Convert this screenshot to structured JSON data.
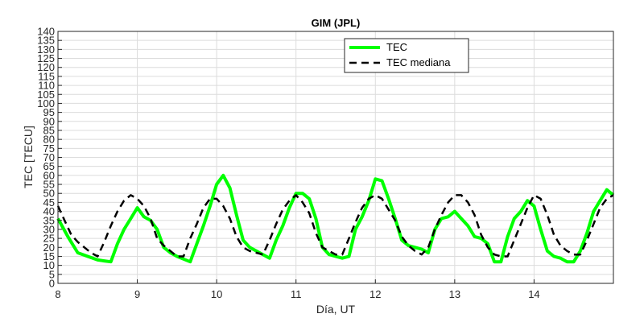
{
  "chart_data": {
    "type": "line",
    "title": "GIM (JPL)",
    "xlabel": "Día, UT",
    "ylabel": "TEC [TECU]",
    "xlim": [
      8,
      15
    ],
    "ylim": [
      0,
      140
    ],
    "xticks": [
      8,
      9,
      10,
      11,
      12,
      13,
      14
    ],
    "yticks": [
      0,
      5,
      10,
      15,
      20,
      25,
      30,
      35,
      40,
      45,
      50,
      55,
      60,
      65,
      70,
      75,
      80,
      85,
      90,
      95,
      100,
      105,
      110,
      115,
      120,
      125,
      130,
      135,
      140
    ],
    "grid": true,
    "legend": "top-center",
    "series": [
      {
        "name": "TEC",
        "color": "#00ff00",
        "style": "solid",
        "x": [
          8.0,
          8.125,
          8.25,
          8.375,
          8.5,
          8.583,
          8.667,
          8.75,
          8.833,
          8.917,
          9.0,
          9.083,
          9.167,
          9.25,
          9.333,
          9.417,
          9.5,
          9.583,
          9.667,
          9.75,
          9.833,
          9.917,
          10.0,
          10.083,
          10.167,
          10.25,
          10.333,
          10.417,
          10.5,
          10.583,
          10.667,
          10.75,
          10.833,
          10.917,
          11.0,
          11.083,
          11.167,
          11.25,
          11.333,
          11.417,
          11.5,
          11.583,
          11.667,
          11.75,
          11.833,
          11.917,
          12.0,
          12.083,
          12.167,
          12.25,
          12.333,
          12.417,
          12.5,
          12.583,
          12.667,
          12.75,
          12.833,
          12.917,
          13.0,
          13.083,
          13.167,
          13.25,
          13.333,
          13.417,
          13.5,
          13.583,
          13.667,
          13.75,
          13.833,
          13.917,
          14.0,
          14.083,
          14.167,
          14.25,
          14.333,
          14.417,
          14.5,
          14.583,
          14.667,
          14.75,
          14.833,
          14.917,
          15.0
        ],
        "y": [
          36,
          26,
          17,
          15,
          13,
          12.5,
          12,
          22,
          30,
          36,
          42,
          37,
          35,
          30,
          20,
          17,
          15,
          13.5,
          12,
          22,
          32,
          43,
          55,
          60,
          53,
          38,
          24,
          20,
          18,
          16,
          14,
          24,
          32,
          42,
          50,
          50,
          47,
          36,
          20,
          16,
          15,
          14,
          15,
          30,
          37,
          46,
          58,
          57,
          47,
          36,
          24,
          21,
          20,
          19,
          17,
          30,
          36,
          37,
          40,
          36,
          32,
          26,
          25,
          22,
          12,
          12,
          26,
          36,
          40,
          46,
          43,
          30,
          18,
          15,
          14,
          12,
          12,
          18,
          28,
          40,
          46,
          52,
          49
        ]
      },
      {
        "name": "TEC mediana",
        "color": "#000000",
        "style": "dashed",
        "x": [
          8.0,
          8.083,
          8.167,
          8.25,
          8.333,
          8.417,
          8.5,
          8.583,
          8.667,
          8.75,
          8.833,
          8.917,
          9.0,
          9.083,
          9.167,
          9.25,
          9.333,
          9.417,
          9.5,
          9.583,
          9.667,
          9.75,
          9.833,
          9.917,
          10.0,
          10.083,
          10.167,
          10.25,
          10.333,
          10.417,
          10.5,
          10.583,
          10.667,
          10.75,
          10.833,
          10.917,
          11.0,
          11.083,
          11.167,
          11.25,
          11.333,
          11.417,
          11.5,
          11.583,
          11.667,
          11.75,
          11.833,
          11.917,
          12.0,
          12.083,
          12.167,
          12.25,
          12.333,
          12.417,
          12.5,
          12.583,
          12.667,
          12.75,
          12.833,
          12.917,
          13.0,
          13.083,
          13.167,
          13.25,
          13.333,
          13.417,
          13.5,
          13.583,
          13.667,
          13.75,
          13.833,
          13.917,
          14.0,
          14.083,
          14.167,
          14.25,
          14.333,
          14.417,
          14.5,
          14.583,
          14.667,
          14.75,
          14.833,
          14.917,
          15.0
        ],
        "y": [
          43,
          35,
          27,
          23,
          20,
          17,
          15,
          23,
          32,
          40,
          46,
          49,
          47,
          43,
          36,
          25,
          21,
          18,
          15,
          15,
          25,
          33,
          42,
          47,
          47,
          43,
          36,
          26,
          20,
          18,
          17,
          16,
          24,
          33,
          41,
          46,
          49,
          45,
          39,
          28,
          20,
          18,
          16,
          16,
          25,
          34,
          42,
          47,
          49,
          47,
          41,
          35,
          26,
          21,
          18,
          16,
          20,
          30,
          38,
          45,
          49,
          49,
          45,
          38,
          27,
          20,
          16,
          15,
          15,
          24,
          33,
          42,
          49,
          47,
          38,
          27,
          21,
          18,
          16,
          16,
          24,
          33,
          42,
          47,
          49
        ]
      }
    ]
  }
}
